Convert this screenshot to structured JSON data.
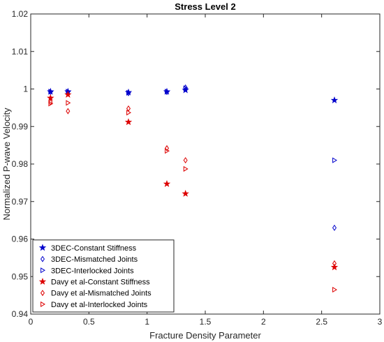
{
  "chart_data": {
    "type": "scatter",
    "title": "Stress Level 2",
    "xlabel": "Fracture Density Parameter",
    "ylabel": "Normalized P-wave Velocity",
    "xlim": [
      0,
      3
    ],
    "ylim": [
      0.94,
      1.02
    ],
    "xticks": [
      0,
      0.5,
      1,
      1.5,
      2,
      2.5,
      3
    ],
    "xtick_labels": [
      "0",
      "0.5",
      "1",
      "1.5",
      "2",
      "2.5",
      "3"
    ],
    "yticks": [
      0.94,
      0.95,
      0.96,
      0.97,
      0.98,
      0.99,
      1.0,
      1.01,
      1.02
    ],
    "ytick_labels": [
      "0.94",
      "0.95",
      "0.96",
      "0.97",
      "0.98",
      "0.99",
      "1",
      "1.01",
      "1.02"
    ],
    "grid": false,
    "legend_position": "bottom-left",
    "series": [
      {
        "name": "3DEC-Constant Stiffness",
        "marker": "star",
        "color": "#0000cc",
        "x": [
          0.17,
          0.32,
          0.84,
          1.17,
          1.33,
          2.61
        ],
        "y": [
          0.9993,
          0.9993,
          0.9991,
          0.9993,
          0.9997,
          0.997
        ]
      },
      {
        "name": "3DEC-Mismatched Joints",
        "marker": "diamond",
        "color": "#0000cc",
        "x": [
          0.17,
          0.32,
          0.84,
          1.17,
          1.33,
          2.61
        ],
        "y": [
          0.9992,
          0.9992,
          0.9989,
          0.9992,
          1.0004,
          0.963
        ]
      },
      {
        "name": "3DEC-Interlocked Joints",
        "marker": "triangle-right",
        "color": "#0000cc",
        "x": [
          0.17,
          0.32,
          0.84,
          1.17,
          1.33,
          2.61
        ],
        "y": [
          0.9993,
          0.9993,
          0.999,
          0.9993,
          1.0002,
          0.981
        ]
      },
      {
        "name": "Davy et al-Constant Stiffness",
        "marker": "star",
        "color": "#dd0000",
        "x": [
          0.17,
          0.32,
          0.84,
          1.17,
          1.33,
          2.61
        ],
        "y": [
          0.9976,
          0.9985,
          0.9912,
          0.9747,
          0.9721,
          0.9525
        ]
      },
      {
        "name": "Davy et al-Mismatched Joints",
        "marker": "diamond",
        "color": "#dd0000",
        "x": [
          0.17,
          0.32,
          0.84,
          1.17,
          1.33,
          2.61
        ],
        "y": [
          0.9965,
          0.9941,
          0.9948,
          0.9842,
          0.981,
          0.9535
        ]
      },
      {
        "name": "Davy et al-Interlocked Joints",
        "marker": "triangle-right",
        "color": "#dd0000",
        "x": [
          0.17,
          0.32,
          0.84,
          1.17,
          1.33,
          2.61
        ],
        "y": [
          0.9961,
          0.9963,
          0.9937,
          0.9835,
          0.9787,
          0.9465
        ]
      }
    ]
  }
}
